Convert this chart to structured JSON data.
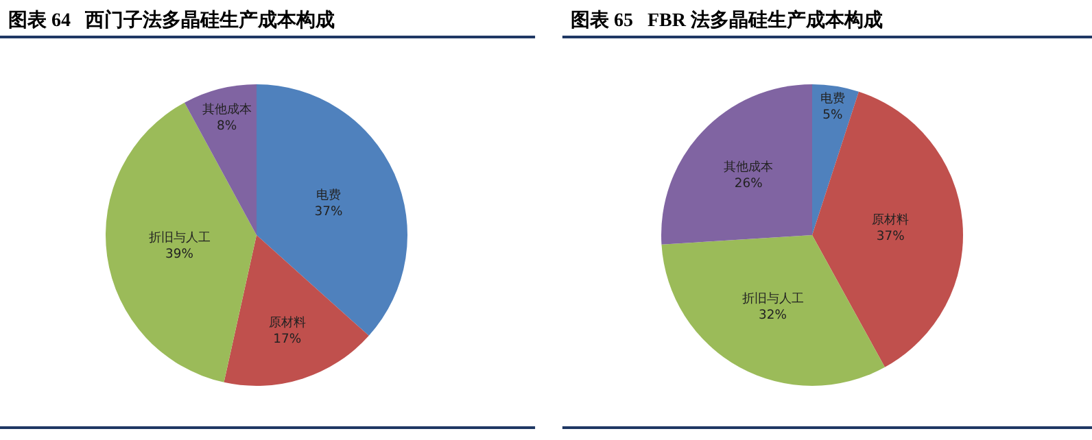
{
  "chart_data": [
    {
      "type": "pie",
      "title": "图表 64   西门子法多晶硅生产成本构成",
      "categories": [
        "电费",
        "原材料",
        "折旧与人工",
        "其他成本"
      ],
      "values": [
        37,
        17,
        39,
        8
      ],
      "value_labels": [
        "37%",
        "17%",
        "39%",
        "8%"
      ],
      "colors": [
        "#4f81bd",
        "#c0504d",
        "#9bbb59",
        "#8064a2"
      ],
      "legend": false
    },
    {
      "type": "pie",
      "title": "图表 65   FBR 法多晶硅生产成本构成",
      "categories": [
        "电费",
        "原材料",
        "折旧与人工",
        "其他成本"
      ],
      "values": [
        5,
        37,
        32,
        26
      ],
      "value_labels": [
        "5%",
        "37%",
        "32%",
        "26%"
      ],
      "colors": [
        "#4f81bd",
        "#c0504d",
        "#9bbb59",
        "#8064a2"
      ],
      "legend": false
    }
  ]
}
